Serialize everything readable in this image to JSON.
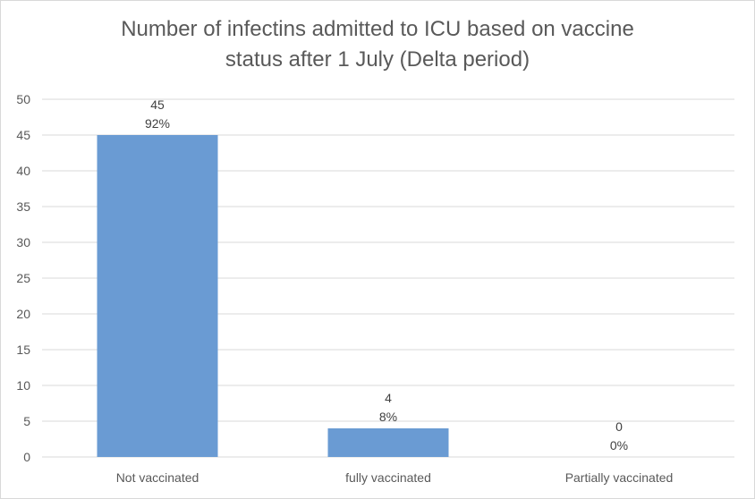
{
  "chart_data": {
    "type": "bar",
    "title": [
      "Number of infectins admitted to ICU based on vaccine",
      "status after 1 July (Delta period)"
    ],
    "categories": [
      "Not vaccinated",
      "fully vaccinated",
      "Partially vaccinated"
    ],
    "values": [
      45,
      4,
      0
    ],
    "percent_labels": [
      "92%",
      "8%",
      "0%"
    ],
    "xlabel": "",
    "ylabel": "",
    "ylim": [
      0,
      50
    ],
    "yticks": [
      "0",
      "5",
      "10",
      "15",
      "20",
      "25",
      "30",
      "35",
      "40",
      "45",
      "50"
    ],
    "grid": true,
    "legend": "none",
    "bar_color": "#6a9bd3",
    "grid_color": "#d9d9d9"
  }
}
